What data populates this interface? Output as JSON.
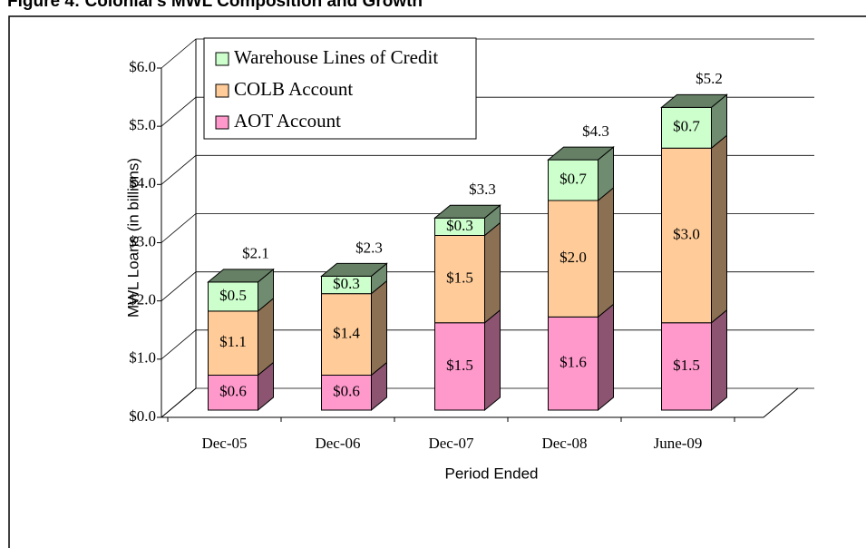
{
  "chart_data": {
    "type": "bar3d_stacked",
    "title": "Figure 4: Colonial's MWL Composition and Growth",
    "xlabel": "Period Ended",
    "ylabel": "MWL Loans (in billions)",
    "categories": [
      "Dec-05",
      "Dec-06",
      "Dec-07",
      "Dec-08",
      "June-09"
    ],
    "series": [
      {
        "name": "AOT Account",
        "color": "#ff99cc",
        "values": [
          0.6,
          0.6,
          1.5,
          1.6,
          1.5
        ],
        "value_labels": [
          "$0.6",
          "$0.6",
          "$1.5",
          "$1.6",
          "$1.5"
        ]
      },
      {
        "name": "COLB Account",
        "color": "#ffcc99",
        "values": [
          1.1,
          1.4,
          1.5,
          2.0,
          3.0
        ],
        "value_labels": [
          "$1.1",
          "$1.4",
          "$1.5",
          "$2.0",
          "$3.0"
        ]
      },
      {
        "name": "Warehouse Lines of Credit",
        "color": "#ccffcc",
        "values": [
          0.5,
          0.3,
          0.3,
          0.7,
          0.7
        ],
        "value_labels": [
          "$0.5",
          "$0.3",
          "$0.3",
          "$0.7",
          "$0.7"
        ]
      }
    ],
    "totals": [
      2.1,
      2.3,
      3.3,
      4.3,
      5.2
    ],
    "total_labels": [
      "$2.1",
      "$2.3",
      "$3.3",
      "$4.3",
      "$5.2"
    ],
    "ylim": [
      0,
      6
    ],
    "yticks": [
      {
        "value": 0,
        "label": "$0.0"
      },
      {
        "value": 1,
        "label": "$1.0"
      },
      {
        "value": 2,
        "label": "$2.0"
      },
      {
        "value": 3,
        "label": "$3.0"
      },
      {
        "value": 4,
        "label": "$4.0"
      },
      {
        "value": 5,
        "label": "$5.0"
      },
      {
        "value": 6,
        "label": "$6.0"
      }
    ],
    "grid": true,
    "legend": "upper left"
  }
}
